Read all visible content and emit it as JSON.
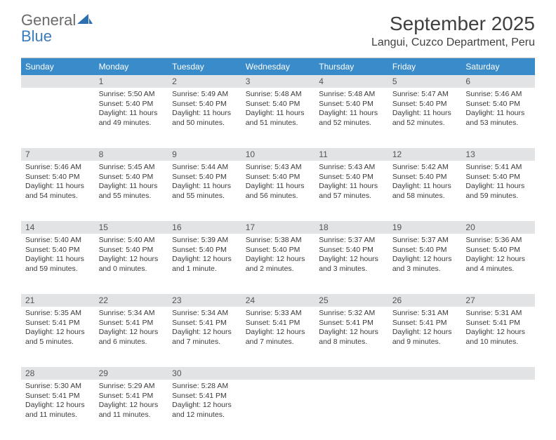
{
  "logo": {
    "general": "General",
    "blue": "Blue"
  },
  "title": "September 2025",
  "location": "Langui, Cuzco Department, Peru",
  "dow": [
    "Sunday",
    "Monday",
    "Tuesday",
    "Wednesday",
    "Thursday",
    "Friday",
    "Saturday"
  ],
  "colors": {
    "header_bar": "#3a8bc9",
    "daynum_bg": "#e1e3e5",
    "border": "#9aa4ab",
    "text": "#3a3a3a",
    "logo_gray": "#6b6b6b",
    "logo_blue": "#3a7bbf"
  },
  "weeks": [
    {
      "nums": [
        "",
        "1",
        "2",
        "3",
        "4",
        "5",
        "6"
      ],
      "cells": [
        [],
        [
          "Sunrise: 5:50 AM",
          "Sunset: 5:40 PM",
          "Daylight: 11 hours",
          "and 49 minutes."
        ],
        [
          "Sunrise: 5:49 AM",
          "Sunset: 5:40 PM",
          "Daylight: 11 hours",
          "and 50 minutes."
        ],
        [
          "Sunrise: 5:48 AM",
          "Sunset: 5:40 PM",
          "Daylight: 11 hours",
          "and 51 minutes."
        ],
        [
          "Sunrise: 5:48 AM",
          "Sunset: 5:40 PM",
          "Daylight: 11 hours",
          "and 52 minutes."
        ],
        [
          "Sunrise: 5:47 AM",
          "Sunset: 5:40 PM",
          "Daylight: 11 hours",
          "and 52 minutes."
        ],
        [
          "Sunrise: 5:46 AM",
          "Sunset: 5:40 PM",
          "Daylight: 11 hours",
          "and 53 minutes."
        ]
      ]
    },
    {
      "nums": [
        "7",
        "8",
        "9",
        "10",
        "11",
        "12",
        "13"
      ],
      "cells": [
        [
          "Sunrise: 5:46 AM",
          "Sunset: 5:40 PM",
          "Daylight: 11 hours",
          "and 54 minutes."
        ],
        [
          "Sunrise: 5:45 AM",
          "Sunset: 5:40 PM",
          "Daylight: 11 hours",
          "and 55 minutes."
        ],
        [
          "Sunrise: 5:44 AM",
          "Sunset: 5:40 PM",
          "Daylight: 11 hours",
          "and 55 minutes."
        ],
        [
          "Sunrise: 5:43 AM",
          "Sunset: 5:40 PM",
          "Daylight: 11 hours",
          "and 56 minutes."
        ],
        [
          "Sunrise: 5:43 AM",
          "Sunset: 5:40 PM",
          "Daylight: 11 hours",
          "and 57 minutes."
        ],
        [
          "Sunrise: 5:42 AM",
          "Sunset: 5:40 PM",
          "Daylight: 11 hours",
          "and 58 minutes."
        ],
        [
          "Sunrise: 5:41 AM",
          "Sunset: 5:40 PM",
          "Daylight: 11 hours",
          "and 59 minutes."
        ]
      ]
    },
    {
      "nums": [
        "14",
        "15",
        "16",
        "17",
        "18",
        "19",
        "20"
      ],
      "cells": [
        [
          "Sunrise: 5:40 AM",
          "Sunset: 5:40 PM",
          "Daylight: 11 hours",
          "and 59 minutes."
        ],
        [
          "Sunrise: 5:40 AM",
          "Sunset: 5:40 PM",
          "Daylight: 12 hours",
          "and 0 minutes."
        ],
        [
          "Sunrise: 5:39 AM",
          "Sunset: 5:40 PM",
          "Daylight: 12 hours",
          "and 1 minute."
        ],
        [
          "Sunrise: 5:38 AM",
          "Sunset: 5:40 PM",
          "Daylight: 12 hours",
          "and 2 minutes."
        ],
        [
          "Sunrise: 5:37 AM",
          "Sunset: 5:40 PM",
          "Daylight: 12 hours",
          "and 3 minutes."
        ],
        [
          "Sunrise: 5:37 AM",
          "Sunset: 5:40 PM",
          "Daylight: 12 hours",
          "and 3 minutes."
        ],
        [
          "Sunrise: 5:36 AM",
          "Sunset: 5:40 PM",
          "Daylight: 12 hours",
          "and 4 minutes."
        ]
      ]
    },
    {
      "nums": [
        "21",
        "22",
        "23",
        "24",
        "25",
        "26",
        "27"
      ],
      "cells": [
        [
          "Sunrise: 5:35 AM",
          "Sunset: 5:41 PM",
          "Daylight: 12 hours",
          "and 5 minutes."
        ],
        [
          "Sunrise: 5:34 AM",
          "Sunset: 5:41 PM",
          "Daylight: 12 hours",
          "and 6 minutes."
        ],
        [
          "Sunrise: 5:34 AM",
          "Sunset: 5:41 PM",
          "Daylight: 12 hours",
          "and 7 minutes."
        ],
        [
          "Sunrise: 5:33 AM",
          "Sunset: 5:41 PM",
          "Daylight: 12 hours",
          "and 7 minutes."
        ],
        [
          "Sunrise: 5:32 AM",
          "Sunset: 5:41 PM",
          "Daylight: 12 hours",
          "and 8 minutes."
        ],
        [
          "Sunrise: 5:31 AM",
          "Sunset: 5:41 PM",
          "Daylight: 12 hours",
          "and 9 minutes."
        ],
        [
          "Sunrise: 5:31 AM",
          "Sunset: 5:41 PM",
          "Daylight: 12 hours",
          "and 10 minutes."
        ]
      ]
    },
    {
      "nums": [
        "28",
        "29",
        "30",
        "",
        "",
        "",
        ""
      ],
      "cells": [
        [
          "Sunrise: 5:30 AM",
          "Sunset: 5:41 PM",
          "Daylight: 12 hours",
          "and 11 minutes."
        ],
        [
          "Sunrise: 5:29 AM",
          "Sunset: 5:41 PM",
          "Daylight: 12 hours",
          "and 11 minutes."
        ],
        [
          "Sunrise: 5:28 AM",
          "Sunset: 5:41 PM",
          "Daylight: 12 hours",
          "and 12 minutes."
        ],
        [],
        [],
        [],
        []
      ]
    }
  ]
}
